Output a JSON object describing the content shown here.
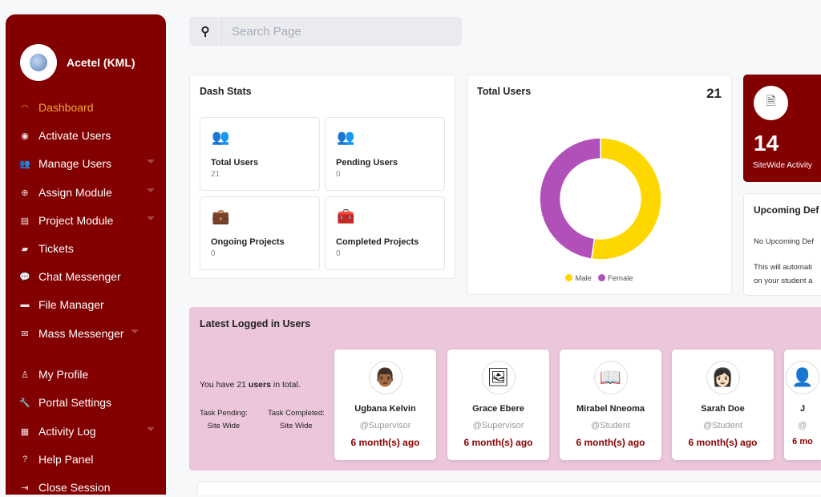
{
  "sidebar": {
    "brand": "Acetel (KML)",
    "items": [
      {
        "label": "Dashboard",
        "icon": "gauge-icon",
        "active": true,
        "caret": false
      },
      {
        "label": "Activate Users",
        "icon": "user-circle-icon",
        "caret": false
      },
      {
        "label": "Manage Users",
        "icon": "users-icon",
        "caret": true
      },
      {
        "label": "Assign Module",
        "icon": "search-lock-icon",
        "caret": true
      },
      {
        "label": "Project Module",
        "icon": "scroll-icon",
        "caret": true
      },
      {
        "label": "Tickets",
        "icon": "ticket-icon",
        "caret": false
      },
      {
        "label": "Chat Messenger",
        "icon": "chat-icon",
        "caret": false
      },
      {
        "label": "File Manager",
        "icon": "folder-icon",
        "caret": false
      },
      {
        "label": "Mass Messenger",
        "icon": "envelope-icon",
        "caret": true
      },
      {
        "label": "My Profile",
        "icon": "user-tie-icon",
        "caret": false
      },
      {
        "label": "Portal Settings",
        "icon": "wrench-icon",
        "caret": false
      },
      {
        "label": "Activity Log",
        "icon": "table-icon",
        "caret": true
      },
      {
        "label": "Help Panel",
        "icon": "question-icon",
        "caret": false
      },
      {
        "label": "Close Session",
        "icon": "sign-out-icon",
        "caret": false
      }
    ]
  },
  "search": {
    "placeholder": "Search Page"
  },
  "dash_stats": {
    "title": "Dash Stats",
    "items": [
      {
        "label": "Total Users",
        "value": "21",
        "icon": "users-icon"
      },
      {
        "label": "Pending Users",
        "value": "0",
        "icon": "user-group-icon"
      },
      {
        "label": "Ongoing Projects",
        "value": "0",
        "icon": "briefcase-icon"
      },
      {
        "label": "Completed Projects",
        "value": "0",
        "icon": "toolbox-icon"
      }
    ]
  },
  "total_users": {
    "title": "Total Users",
    "count": "21"
  },
  "chart_data": {
    "type": "pie",
    "donut": true,
    "categories": [
      "Male",
      "Female"
    ],
    "values": [
      11,
      10
    ],
    "colors": [
      "#ffd700",
      "#b050b8"
    ],
    "legend": "bottom"
  },
  "activity": {
    "value": "14",
    "label": "SiteWide Activity",
    "icon": "document-icon"
  },
  "upcoming": {
    "title": "Upcoming Def",
    "line1": "No Upcoming Def",
    "line2": "This will automati",
    "line3": "on your student a"
  },
  "latest": {
    "title": "Latest Logged in Users",
    "summary_pre": "You have 21 ",
    "summary_bold": "users",
    "summary_post": " in total.",
    "task_pending": "Task Pending:",
    "task_pending_val": "Site Wide",
    "task_completed": "Task Completed:",
    "task_completed_val": "Site Wide",
    "users": [
      {
        "name": "Ugbana Kelvin",
        "role": "@Supervisor",
        "time": "6 month(s) ago",
        "avatar": "👨🏾"
      },
      {
        "name": "Grace Ebere",
        "role": "@Supervisor",
        "time": "6 month(s) ago",
        "avatar": "🖼"
      },
      {
        "name": "Mirabel Nneoma",
        "role": "@Student",
        "time": "6 month(s) ago",
        "avatar": "📖"
      },
      {
        "name": "Sarah Doe",
        "role": "@Student",
        "time": "6 month(s) ago",
        "avatar": "👩🏻"
      },
      {
        "name": "J",
        "role": "@",
        "time": "6 mo",
        "avatar": "👤"
      }
    ]
  },
  "colors": {
    "sidebar": "#830000",
    "accent": "#f0a830",
    "pink": "#ecc6da"
  }
}
